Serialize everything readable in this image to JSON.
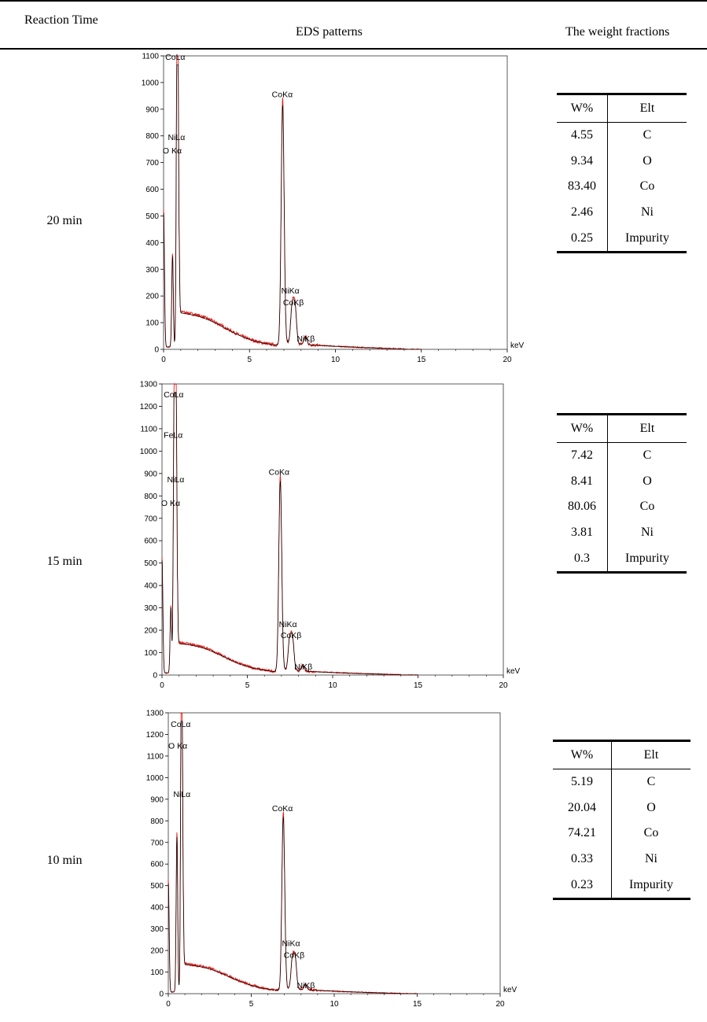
{
  "header": {
    "col1": "Reaction Time",
    "col2": "EDS patterns",
    "col3": "The weight fractions"
  },
  "rows": [
    {
      "time": "20 min",
      "table": {
        "col_w": "W%",
        "col_elt": "Elt",
        "rows": [
          {
            "w": "4.55",
            "elt": "C"
          },
          {
            "w": "9.34",
            "elt": "O"
          },
          {
            "w": "83.40",
            "elt": "Co"
          },
          {
            "w": "2.46",
            "elt": "Ni"
          },
          {
            "w": "0.25",
            "elt": "Impurity"
          }
        ]
      },
      "chart_data": {
        "type": "line",
        "xlabel": "keV",
        "xlim": [
          0,
          20
        ],
        "ylim": [
          0,
          1100
        ],
        "xticks": [
          0,
          5,
          10,
          15,
          20
        ],
        "yticks": [
          0,
          100,
          200,
          300,
          400,
          500,
          600,
          700,
          800,
          900,
          1000,
          1100
        ],
        "peaks": [
          {
            "label": "CoLα",
            "x": 0.78,
            "y": 1080
          },
          {
            "label": "NiLα",
            "x": 0.85,
            "y": 780
          },
          {
            "label": "O Kα",
            "x": 0.52,
            "y": 350
          },
          {
            "label": "CoKα",
            "x": 6.93,
            "y": 930
          },
          {
            "label": "NiKα",
            "x": 7.48,
            "y": 140
          },
          {
            "label": "CoKβ",
            "x": 7.65,
            "y": 140
          },
          {
            "label": "NiKβ",
            "x": 8.26,
            "y": 30
          }
        ],
        "peak_labels": [
          {
            "text": "CoLα",
            "x": 0.1,
            "y": 1085
          },
          {
            "text": "NiLα",
            "x": 0.25,
            "y": 785
          },
          {
            "text": "O Kα",
            "x": -0.05,
            "y": 735
          },
          {
            "text": "CoKα",
            "x": 6.3,
            "y": 945
          },
          {
            "text": "NiKα",
            "x": 6.85,
            "y": 210
          },
          {
            "text": "CoKβ",
            "x": 6.95,
            "y": 165
          },
          {
            "text": "NiKβ",
            "x": 7.75,
            "y": 30
          }
        ],
        "background_hump": {
          "center": 2.2,
          "height": 60
        }
      }
    },
    {
      "time": "15 min",
      "table": {
        "col_w": "W%",
        "col_elt": "Elt",
        "rows": [
          {
            "w": "7.42",
            "elt": "C"
          },
          {
            "w": "8.41",
            "elt": "O"
          },
          {
            "w": "80.06",
            "elt": "Co"
          },
          {
            "w": "3.81",
            "elt": "Ni"
          },
          {
            "w": "0.3",
            "elt": "Impurity"
          }
        ]
      },
      "chart_data": {
        "type": "line",
        "xlabel": "keV",
        "xlim": [
          0,
          20
        ],
        "ylim": [
          0,
          1300
        ],
        "xticks": [
          0,
          5,
          10,
          15,
          20
        ],
        "yticks": [
          0,
          100,
          200,
          300,
          400,
          500,
          600,
          700,
          800,
          900,
          1000,
          1100,
          1200,
          1300
        ],
        "peaks": [
          {
            "label": "CoLα",
            "x": 0.78,
            "y": 1250
          },
          {
            "label": "FeLα",
            "x": 0.7,
            "y": 1000
          },
          {
            "label": "NiLα",
            "x": 0.85,
            "y": 780
          },
          {
            "label": "O Kα",
            "x": 0.52,
            "y": 300
          },
          {
            "label": "CoKα",
            "x": 6.93,
            "y": 880
          },
          {
            "label": "NiKα",
            "x": 7.48,
            "y": 140
          },
          {
            "label": "CoKβ",
            "x": 7.65,
            "y": 140
          },
          {
            "label": "NiKβ",
            "x": 8.26,
            "y": 25
          }
        ],
        "peak_labels": [
          {
            "text": "CoLα",
            "x": 0.1,
            "y": 1240
          },
          {
            "text": "FeLα",
            "x": 0.1,
            "y": 1060
          },
          {
            "text": "NiLα",
            "x": 0.3,
            "y": 860
          },
          {
            "text": "O Kα",
            "x": -0.05,
            "y": 755
          },
          {
            "text": "CoKα",
            "x": 6.25,
            "y": 895
          },
          {
            "text": "NiKα",
            "x": 6.85,
            "y": 215
          },
          {
            "text": "CoKβ",
            "x": 6.95,
            "y": 165
          },
          {
            "text": "NiKβ",
            "x": 7.75,
            "y": 25
          }
        ],
        "background_hump": {
          "center": 2.2,
          "height": 65
        }
      }
    },
    {
      "time": "10 min",
      "table": {
        "col_w": "W%",
        "col_elt": "Elt",
        "rows": [
          {
            "w": "5.19",
            "elt": "C"
          },
          {
            "w": "20.04",
            "elt": "O"
          },
          {
            "w": "74.21",
            "elt": "Co"
          },
          {
            "w": "0.33",
            "elt": "Ni"
          },
          {
            "w": "0.23",
            "elt": "Impurity"
          }
        ]
      },
      "chart_data": {
        "type": "line",
        "xlabel": "keV",
        "xlim": [
          0,
          20
        ],
        "ylim": [
          0,
          1300
        ],
        "xticks": [
          0,
          5,
          10,
          15,
          20
        ],
        "yticks": [
          0,
          100,
          200,
          300,
          400,
          500,
          600,
          700,
          800,
          900,
          1000,
          1100,
          1200,
          1300
        ],
        "peaks": [
          {
            "label": "CoLα",
            "x": 0.78,
            "y": 1250
          },
          {
            "label": "O Kα",
            "x": 0.52,
            "y": 740
          },
          {
            "label": "NiLα",
            "x": 0.85,
            "y": 860
          },
          {
            "label": "CoKα",
            "x": 6.93,
            "y": 830
          },
          {
            "label": "NiKα",
            "x": 7.48,
            "y": 140
          },
          {
            "label": "CoKβ",
            "x": 7.65,
            "y": 140
          },
          {
            "label": "NiKβ",
            "x": 8.26,
            "y": 25
          }
        ],
        "peak_labels": [
          {
            "text": "CoLα",
            "x": 0.15,
            "y": 1235
          },
          {
            "text": "O Kα",
            "x": 0.0,
            "y": 1135
          },
          {
            "text": "NiLα",
            "x": 0.3,
            "y": 910
          },
          {
            "text": "CoKα",
            "x": 6.25,
            "y": 845
          },
          {
            "text": "NiKα",
            "x": 6.85,
            "y": 220
          },
          {
            "text": "CoKβ",
            "x": 6.95,
            "y": 165
          },
          {
            "text": "NiKβ",
            "x": 7.75,
            "y": 25
          }
        ],
        "background_hump": {
          "center": 2.3,
          "height": 60
        }
      }
    }
  ],
  "colors": {
    "measured": "#e0201b",
    "fit": "#000000"
  }
}
